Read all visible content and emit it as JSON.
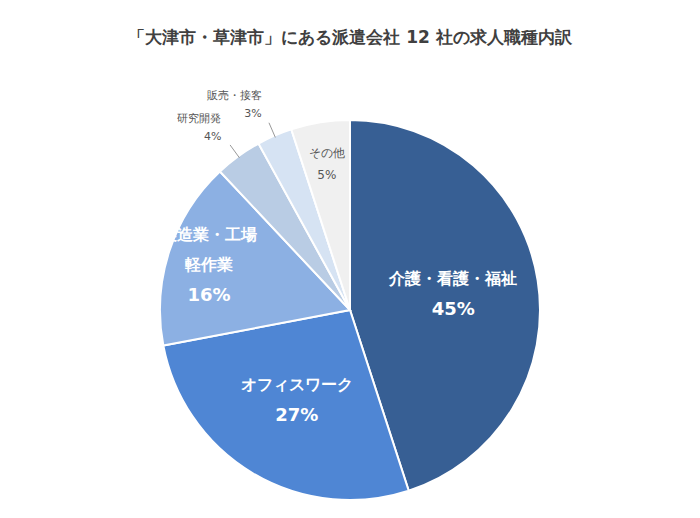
{
  "chart_data": {
    "type": "pie",
    "title": "「大津市・草津市」にある派遣会社 12 社の求人職種内訳",
    "categories": [
      "介護・看護・福祉",
      "オフィスワーク",
      "製造業・工場\n軽作業",
      "研究開発",
      "販売・接客",
      "その他"
    ],
    "values": [
      45,
      27,
      16,
      4,
      3,
      5
    ],
    "value_labels": [
      "45%",
      "27%",
      "16%",
      "4%",
      "3%",
      "5%"
    ],
    "colors": [
      "#375f94",
      "#4f86d4",
      "#8cb0e3",
      "#b9cce4",
      "#d6e3f3",
      "#f0f0f0"
    ],
    "data_labels": true
  }
}
